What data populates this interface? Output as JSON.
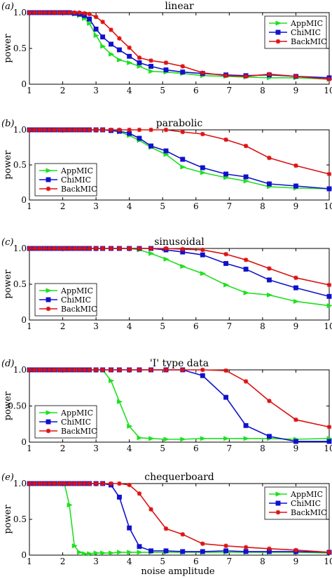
{
  "colors": {
    "AppMIC": "#1ee01e",
    "ChiMIC": "#1111cc",
    "BackMIC": "#dd1111"
  },
  "markers": {
    "AppMIC": "triangle-right",
    "ChiMIC": "square",
    "BackMIC": "asterisk"
  },
  "xlabel": "noise amplitude",
  "chart_data": [
    {
      "type": "line",
      "panel_label": "(a)",
      "title": "linear",
      "ylabel": "power",
      "xlim": [
        1,
        10
      ],
      "ylim": [
        0,
        1
      ],
      "xticks": [
        "1",
        "2",
        "3",
        "4",
        "5",
        "6",
        "7",
        "8",
        "9",
        "10"
      ],
      "yticks": [
        "0",
        "0.5",
        "1.0"
      ],
      "legend": "top-right",
      "x": [
        1.0,
        1.15,
        1.3,
        1.45,
        1.6,
        1.75,
        1.9,
        2.05,
        2.2,
        2.35,
        2.5,
        2.65,
        2.8,
        3.0,
        3.2,
        3.45,
        3.7,
        4.0,
        4.3,
        4.65,
        5.1,
        5.6,
        6.2,
        6.9,
        7.5,
        8.2,
        9.0,
        10.0
      ],
      "series": [
        {
          "name": "AppMIC",
          "values": [
            1,
            1,
            1,
            1,
            1,
            1,
            1,
            1,
            1,
            0.98,
            0.96,
            0.92,
            0.85,
            0.68,
            0.53,
            0.42,
            0.34,
            0.3,
            0.25,
            0.18,
            0.17,
            0.15,
            0.12,
            0.11,
            0.1,
            0.09,
            0.09,
            0.07
          ]
        },
        {
          "name": "ChiMIC",
          "values": [
            1,
            1,
            1,
            1,
            1,
            1,
            1,
            1,
            1,
            0.99,
            0.98,
            0.96,
            0.91,
            0.77,
            0.66,
            0.56,
            0.48,
            0.39,
            0.3,
            0.25,
            0.2,
            0.17,
            0.15,
            0.13,
            0.12,
            0.13,
            0.11,
            0.09
          ]
        },
        {
          "name": "BackMIC",
          "values": [
            1,
            1,
            1,
            1,
            1,
            1,
            1,
            1,
            1,
            1,
            1,
            0.99,
            0.98,
            0.94,
            0.87,
            0.76,
            0.64,
            0.51,
            0.37,
            0.33,
            0.3,
            0.25,
            0.16,
            0.12,
            0.11,
            0.14,
            0.11,
            0.07
          ]
        }
      ]
    },
    {
      "type": "line",
      "panel_label": "(b)",
      "title": "parabolic",
      "ylabel": "power",
      "xlim": [
        1,
        10
      ],
      "ylim": [
        0,
        1
      ],
      "xticks": [
        "1",
        "2",
        "3",
        "4",
        "5",
        "6",
        "7",
        "8",
        "9",
        "10"
      ],
      "yticks": [
        "0",
        "0.5",
        "1.0"
      ],
      "legend": "bottom-left",
      "x": [
        1.0,
        1.15,
        1.3,
        1.45,
        1.6,
        1.75,
        1.9,
        2.05,
        2.2,
        2.35,
        2.5,
        2.65,
        2.8,
        3.0,
        3.2,
        3.45,
        3.7,
        4.0,
        4.3,
        4.65,
        5.1,
        5.6,
        6.2,
        6.9,
        7.5,
        8.2,
        9.0,
        10.0
      ],
      "series": [
        {
          "name": "AppMIC",
          "values": [
            1,
            1,
            1,
            1,
            1,
            1,
            1,
            1,
            1,
            1,
            1,
            1,
            1,
            1,
            1,
            0.99,
            0.97,
            0.92,
            0.85,
            0.75,
            0.65,
            0.47,
            0.39,
            0.32,
            0.27,
            0.19,
            0.17,
            0.16
          ]
        },
        {
          "name": "ChiMIC",
          "values": [
            1,
            1,
            1,
            1,
            1,
            1,
            1,
            1,
            1,
            1,
            1,
            1,
            1,
            1,
            1,
            0.99,
            0.98,
            0.95,
            0.88,
            0.77,
            0.7,
            0.58,
            0.46,
            0.37,
            0.33,
            0.23,
            0.2,
            0.16
          ]
        },
        {
          "name": "BackMIC",
          "values": [
            1,
            1,
            1,
            1,
            1,
            1,
            1,
            1,
            1,
            1,
            1,
            1,
            1,
            1,
            1,
            1,
            1,
            1,
            1,
            1,
            1,
            0.97,
            0.94,
            0.86,
            0.77,
            0.6,
            0.49,
            0.37
          ]
        }
      ]
    },
    {
      "type": "line",
      "panel_label": "(c)",
      "title": "sinusoidal",
      "ylabel": "power",
      "xlim": [
        1,
        10
      ],
      "ylim": [
        0,
        1
      ],
      "xticks": [
        "1",
        "2",
        "3",
        "4",
        "5",
        "6",
        "7",
        "8",
        "9",
        "10"
      ],
      "yticks": [
        "0",
        "0.5",
        "1.0"
      ],
      "legend": "bottom-left",
      "x": [
        1.0,
        1.15,
        1.3,
        1.45,
        1.6,
        1.75,
        1.9,
        2.05,
        2.2,
        2.35,
        2.5,
        2.65,
        2.8,
        3.0,
        3.2,
        3.45,
        3.7,
        4.0,
        4.3,
        4.65,
        5.1,
        5.6,
        6.2,
        6.9,
        7.5,
        8.2,
        9.0,
        10.0
      ],
      "series": [
        {
          "name": "AppMIC",
          "values": [
            1,
            1,
            1,
            1,
            1,
            1,
            1,
            1,
            1,
            1,
            1,
            1,
            1,
            1,
            1,
            1,
            1,
            1,
            0.98,
            0.93,
            0.85,
            0.75,
            0.65,
            0.49,
            0.38,
            0.35,
            0.26,
            0.2
          ]
        },
        {
          "name": "ChiMIC",
          "values": [
            1,
            1,
            1,
            1,
            1,
            1,
            1,
            1,
            1,
            1,
            1,
            1,
            1,
            1,
            1,
            1,
            1,
            1,
            1,
            1,
            0.98,
            0.95,
            0.91,
            0.79,
            0.71,
            0.56,
            0.45,
            0.33
          ]
        },
        {
          "name": "BackMIC",
          "values": [
            1,
            1,
            1,
            1,
            1,
            1,
            1,
            1,
            1,
            1,
            1,
            1,
            1,
            1,
            1,
            1,
            1,
            1,
            1,
            1,
            1,
            0.99,
            0.98,
            0.92,
            0.84,
            0.72,
            0.59,
            0.49
          ]
        }
      ]
    },
    {
      "type": "line",
      "panel_label": "(d)",
      "title": "'I' type data",
      "ylabel": "power",
      "xlim": [
        1,
        10
      ],
      "ylim": [
        0,
        1
      ],
      "xticks": [
        "1",
        "2",
        "3",
        "4",
        "5",
        "6",
        "7",
        "8",
        "9",
        "10"
      ],
      "yticks": [
        "0",
        "0.50",
        "1.0"
      ],
      "legend": "bottom-left",
      "x": [
        1.0,
        1.15,
        1.3,
        1.45,
        1.6,
        1.75,
        1.9,
        2.05,
        2.2,
        2.35,
        2.5,
        2.65,
        2.8,
        3.0,
        3.2,
        3.45,
        3.7,
        4.0,
        4.3,
        4.65,
        5.1,
        5.6,
        6.2,
        6.9,
        7.5,
        8.2,
        9.0,
        10.0
      ],
      "series": [
        {
          "name": "AppMIC",
          "values": [
            1,
            1,
            1,
            1,
            1,
            1,
            1,
            1,
            1,
            1,
            1,
            1,
            1,
            1,
            1,
            0.85,
            0.56,
            0.22,
            0.06,
            0.05,
            0.04,
            0.04,
            0.05,
            0.05,
            0.05,
            0.05,
            0.04,
            0.05
          ]
        },
        {
          "name": "ChiMIC",
          "values": [
            1,
            1,
            1,
            1,
            1,
            1,
            1,
            1,
            1,
            1,
            1,
            1,
            1,
            1,
            1,
            1,
            1,
            1,
            1,
            1,
            1,
            1,
            0.92,
            0.62,
            0.23,
            0.08,
            0.01,
            0.01
          ]
        },
        {
          "name": "BackMIC",
          "values": [
            1,
            1,
            1,
            1,
            1,
            1,
            1,
            1,
            1,
            1,
            1,
            1,
            1,
            1,
            1,
            1,
            1,
            1,
            1,
            1,
            1,
            1,
            1,
            0.99,
            0.84,
            0.57,
            0.31,
            0.21
          ]
        }
      ]
    },
    {
      "type": "line",
      "panel_label": "(e)",
      "title": "chequerboard",
      "ylabel": "power",
      "xlim": [
        1,
        10
      ],
      "ylim": [
        0,
        1
      ],
      "xticks": [
        "1",
        "2",
        "3",
        "4",
        "5",
        "6",
        "7",
        "8",
        "9",
        "10"
      ],
      "yticks": [
        "0",
        "0.5",
        "1.0"
      ],
      "legend": "top-right",
      "x": [
        1.0,
        1.15,
        1.3,
        1.45,
        1.6,
        1.75,
        1.9,
        2.05,
        2.2,
        2.35,
        2.5,
        2.65,
        2.8,
        3.0,
        3.2,
        3.45,
        3.7,
        4.0,
        4.3,
        4.65,
        5.1,
        5.6,
        6.2,
        6.9,
        7.5,
        8.2,
        9.0,
        10.0
      ],
      "series": [
        {
          "name": "AppMIC",
          "values": [
            1,
            1,
            1,
            1,
            1,
            1,
            1,
            1,
            0.7,
            0.13,
            0.04,
            0.02,
            0.02,
            0.03,
            0.03,
            0.03,
            0.04,
            0.04,
            0.04,
            0.04,
            0.04,
            0.04,
            0.04,
            0.04,
            0.04,
            0.04,
            0.04,
            0.03
          ]
        },
        {
          "name": "ChiMIC",
          "values": [
            1,
            1,
            1,
            1,
            1,
            1,
            1,
            1,
            1,
            1,
            1,
            1,
            1,
            1,
            1,
            0.98,
            0.81,
            0.38,
            0.12,
            0.06,
            0.06,
            0.05,
            0.05,
            0.06,
            0.05,
            0.05,
            0.05,
            0.04
          ]
        },
        {
          "name": "BackMIC",
          "values": [
            1,
            1,
            1,
            1,
            1,
            1,
            1,
            1,
            1,
            1,
            1,
            1,
            1,
            1,
            1,
            1,
            1,
            0.98,
            0.86,
            0.64,
            0.37,
            0.29,
            0.16,
            0.13,
            0.11,
            0.09,
            0.07,
            0.04
          ]
        }
      ]
    }
  ]
}
